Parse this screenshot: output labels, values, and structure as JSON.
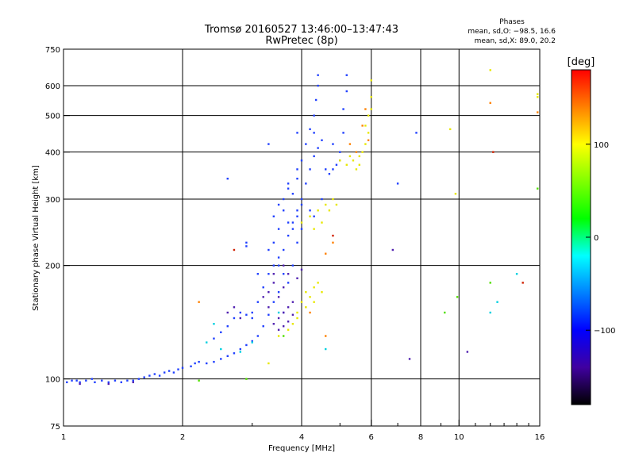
{
  "figure": {
    "title": "Tromsø 20160527 13:46:00–13:47:43",
    "subtitle": "RwPretec (8p)",
    "phases_header": "Phases",
    "stat_o": "mean, sd,O: −98.5, 16.6",
    "stat_x": "mean, sd,X:  89.0, 20.2"
  },
  "chart_data": {
    "type": "scatter",
    "title": "Tromsø 20160527 13:46:00–13:47:43",
    "subtitle": "RwPretec (8p)",
    "xlabel": "Frequency [MHz]",
    "ylabel": "Stationary phase Virtual Height [km]",
    "x_scale": "log",
    "y_scale": "log",
    "xlim": [
      1,
      16
    ],
    "ylim": [
      75,
      750
    ],
    "x_ticks": [
      1,
      2,
      4,
      6,
      8,
      10,
      16
    ],
    "y_ticks": [
      75,
      100,
      200,
      300,
      400,
      500,
      600,
      750
    ],
    "grid": true,
    "colorbar": {
      "label": "[deg]",
      "range": [
        -180,
        180
      ],
      "ticks": [
        100,
        0,
        -100
      ],
      "colors": [
        "#ff0000",
        "#ff8000",
        "#ffff00",
        "#80ff00",
        "#00ff00",
        "#00ffff",
        "#0080ff",
        "#0000ff",
        "#4000a0",
        "#000000"
      ]
    },
    "series": [
      {
        "color": "#2040ff",
        "points": [
          [
            1.02,
            98
          ],
          [
            1.05,
            99
          ],
          [
            1.08,
            99
          ],
          [
            1.1,
            98
          ],
          [
            1.14,
            99
          ],
          [
            1.18,
            100
          ],
          [
            1.2,
            98
          ],
          [
            1.25,
            99
          ],
          [
            1.3,
            98
          ],
          [
            1.35,
            99
          ],
          [
            1.4,
            98
          ],
          [
            1.45,
            99
          ],
          [
            1.5,
            99
          ],
          [
            1.55,
            100
          ],
          [
            1.6,
            101
          ],
          [
            1.65,
            102
          ],
          [
            1.7,
            103
          ],
          [
            1.75,
            102
          ],
          [
            1.8,
            104
          ],
          [
            1.85,
            105
          ],
          [
            1.9,
            104
          ],
          [
            1.95,
            106
          ],
          [
            2.0,
            107
          ],
          [
            2.1,
            108
          ],
          [
            2.15,
            110
          ],
          [
            2.2,
            111
          ],
          [
            2.3,
            110
          ],
          [
            2.4,
            111
          ],
          [
            2.5,
            113
          ],
          [
            2.6,
            115
          ],
          [
            2.7,
            117
          ],
          [
            2.8,
            120
          ],
          [
            2.9,
            123
          ],
          [
            3.0,
            126
          ],
          [
            3.1,
            130
          ],
          [
            3.2,
            138
          ],
          [
            3.3,
            148
          ],
          [
            2.4,
            128
          ],
          [
            2.5,
            133
          ],
          [
            2.6,
            138
          ],
          [
            2.7,
            145
          ],
          [
            2.8,
            150
          ],
          [
            2.9,
            148
          ],
          [
            3.0,
            150
          ],
          [
            3.1,
            160
          ],
          [
            3.2,
            175
          ],
          [
            3.3,
            190
          ],
          [
            3.4,
            200
          ],
          [
            3.5,
            210
          ],
          [
            3.6,
            220
          ],
          [
            3.7,
            240
          ],
          [
            3.8,
            260
          ],
          [
            3.9,
            280
          ],
          [
            4.0,
            300
          ],
          [
            4.1,
            330
          ],
          [
            4.2,
            360
          ],
          [
            4.3,
            390
          ],
          [
            4.4,
            410
          ],
          [
            4.3,
            450
          ],
          [
            4.3,
            500
          ],
          [
            4.35,
            550
          ],
          [
            4.4,
            600
          ],
          [
            4.4,
            640
          ],
          [
            4.6,
            360
          ],
          [
            4.7,
            350
          ],
          [
            4.8,
            360
          ],
          [
            4.9,
            370
          ],
          [
            5.0,
            400
          ],
          [
            5.1,
            450
          ],
          [
            5.1,
            520
          ],
          [
            5.2,
            580
          ],
          [
            5.2,
            640
          ],
          [
            3.6,
            280
          ],
          [
            3.7,
            260
          ],
          [
            3.8,
            250
          ],
          [
            3.9,
            270
          ],
          [
            4.0,
            290
          ],
          [
            3.7,
            320
          ],
          [
            3.8,
            310
          ],
          [
            3.5,
            290
          ],
          [
            3.6,
            300
          ],
          [
            3.4,
            270
          ],
          [
            3.5,
            250
          ],
          [
            3.4,
            230
          ],
          [
            3.3,
            220
          ],
          [
            3.5,
            200
          ],
          [
            3.6,
            190
          ],
          [
            3.7,
            180
          ],
          [
            3.5,
            170
          ],
          [
            3.4,
            160
          ],
          [
            3.6,
            150
          ],
          [
            3.8,
            200
          ],
          [
            3.9,
            230
          ],
          [
            4.0,
            250
          ],
          [
            4.2,
            280
          ],
          [
            4.3,
            270
          ],
          [
            4.5,
            300
          ],
          [
            3.9,
            360
          ],
          [
            4.0,
            380
          ],
          [
            4.1,
            420
          ],
          [
            3.9,
            450
          ],
          [
            3.7,
            330
          ],
          [
            3.9,
            340
          ],
          [
            4.2,
            460
          ],
          [
            4.5,
            430
          ],
          [
            5.0,
            380
          ],
          [
            4.8,
            420
          ],
          [
            2.9,
            230
          ],
          [
            2.9,
            225
          ],
          [
            3.0,
            145
          ],
          [
            2.6,
            340
          ],
          [
            3.3,
            420
          ],
          [
            3.1,
            190
          ],
          [
            7.0,
            330
          ],
          [
            7.8,
            450
          ]
        ]
      },
      {
        "color": "#5020b0",
        "points": [
          [
            3.4,
            140
          ],
          [
            3.5,
            145
          ],
          [
            3.6,
            150
          ],
          [
            3.7,
            155
          ],
          [
            3.8,
            160
          ],
          [
            3.5,
            165
          ],
          [
            3.6,
            175
          ],
          [
            3.4,
            180
          ],
          [
            3.3,
            170
          ],
          [
            3.2,
            165
          ],
          [
            3.7,
            190
          ],
          [
            3.9,
            185
          ],
          [
            4.0,
            195
          ],
          [
            3.5,
            135
          ],
          [
            3.6,
            138
          ],
          [
            3.7,
            142
          ],
          [
            3.8,
            148
          ],
          [
            3.3,
            155
          ],
          [
            3.4,
            190
          ],
          [
            3.6,
            200
          ],
          [
            2.6,
            150
          ],
          [
            2.8,
            145
          ],
          [
            2.7,
            155
          ],
          [
            1.1,
            97
          ],
          [
            1.3,
            97
          ],
          [
            1.5,
            98
          ],
          [
            6.8,
            220
          ],
          [
            7.5,
            113
          ],
          [
            10.5,
            118
          ]
        ]
      },
      {
        "color": "#e8e800",
        "points": [
          [
            3.7,
            135
          ],
          [
            3.8,
            140
          ],
          [
            3.9,
            150
          ],
          [
            4.0,
            160
          ],
          [
            4.1,
            170
          ],
          [
            4.2,
            165
          ],
          [
            4.3,
            175
          ],
          [
            4.4,
            180
          ],
          [
            4.5,
            170
          ],
          [
            4.3,
            160
          ],
          [
            4.1,
            155
          ],
          [
            3.9,
            145
          ],
          [
            4.0,
            260
          ],
          [
            4.2,
            270
          ],
          [
            4.4,
            280
          ],
          [
            4.6,
            290
          ],
          [
            4.8,
            300
          ],
          [
            4.5,
            260
          ],
          [
            4.3,
            250
          ],
          [
            5.2,
            370
          ],
          [
            5.4,
            380
          ],
          [
            5.6,
            390
          ],
          [
            5.7,
            400
          ],
          [
            5.8,
            420
          ],
          [
            5.9,
            450
          ],
          [
            5.9,
            500
          ],
          [
            6.0,
            560
          ],
          [
            6.0,
            620
          ],
          [
            5.5,
            360
          ],
          [
            5.3,
            390
          ],
          [
            5.0,
            380
          ],
          [
            5.8,
            470
          ],
          [
            6.0,
            520
          ],
          [
            5.6,
            370
          ],
          [
            4.7,
            280
          ],
          [
            4.9,
            290
          ],
          [
            3.3,
            110
          ],
          [
            3.5,
            130
          ],
          [
            9.5,
            460
          ],
          [
            12.0,
            660
          ],
          [
            15.8,
            570
          ],
          [
            15.8,
            560
          ],
          [
            9.8,
            310
          ]
        ]
      },
      {
        "color": "#ff8000",
        "points": [
          [
            5.7,
            470
          ],
          [
            5.8,
            520
          ],
          [
            5.9,
            430
          ],
          [
            4.8,
            230
          ],
          [
            4.6,
            215
          ],
          [
            5.5,
            400
          ],
          [
            5.3,
            420
          ],
          [
            4.2,
            150
          ],
          [
            2.2,
            160
          ],
          [
            4.6,
            130
          ],
          [
            12.0,
            540
          ],
          [
            15.8,
            510
          ]
        ]
      },
      {
        "color": "#00d0e0",
        "points": [
          [
            2.3,
            125
          ],
          [
            2.5,
            120
          ],
          [
            2.8,
            118
          ],
          [
            3.0,
            125
          ],
          [
            4.6,
            120
          ],
          [
            3.5,
            150
          ],
          [
            2.4,
            140
          ],
          [
            12.0,
            150
          ],
          [
            14.0,
            190
          ],
          [
            12.5,
            160
          ]
        ]
      },
      {
        "color": "#50e000",
        "points": [
          [
            2.2,
            99
          ],
          [
            2.9,
            100
          ],
          [
            3.6,
            130
          ],
          [
            12.0,
            180
          ],
          [
            9.9,
            165
          ],
          [
            15.8,
            320
          ],
          [
            9.2,
            150
          ]
        ]
      },
      {
        "color": "#d02000",
        "points": [
          [
            14.5,
            180
          ],
          [
            12.2,
            400
          ],
          [
            2.7,
            220
          ],
          [
            4.8,
            240
          ]
        ]
      }
    ]
  }
}
